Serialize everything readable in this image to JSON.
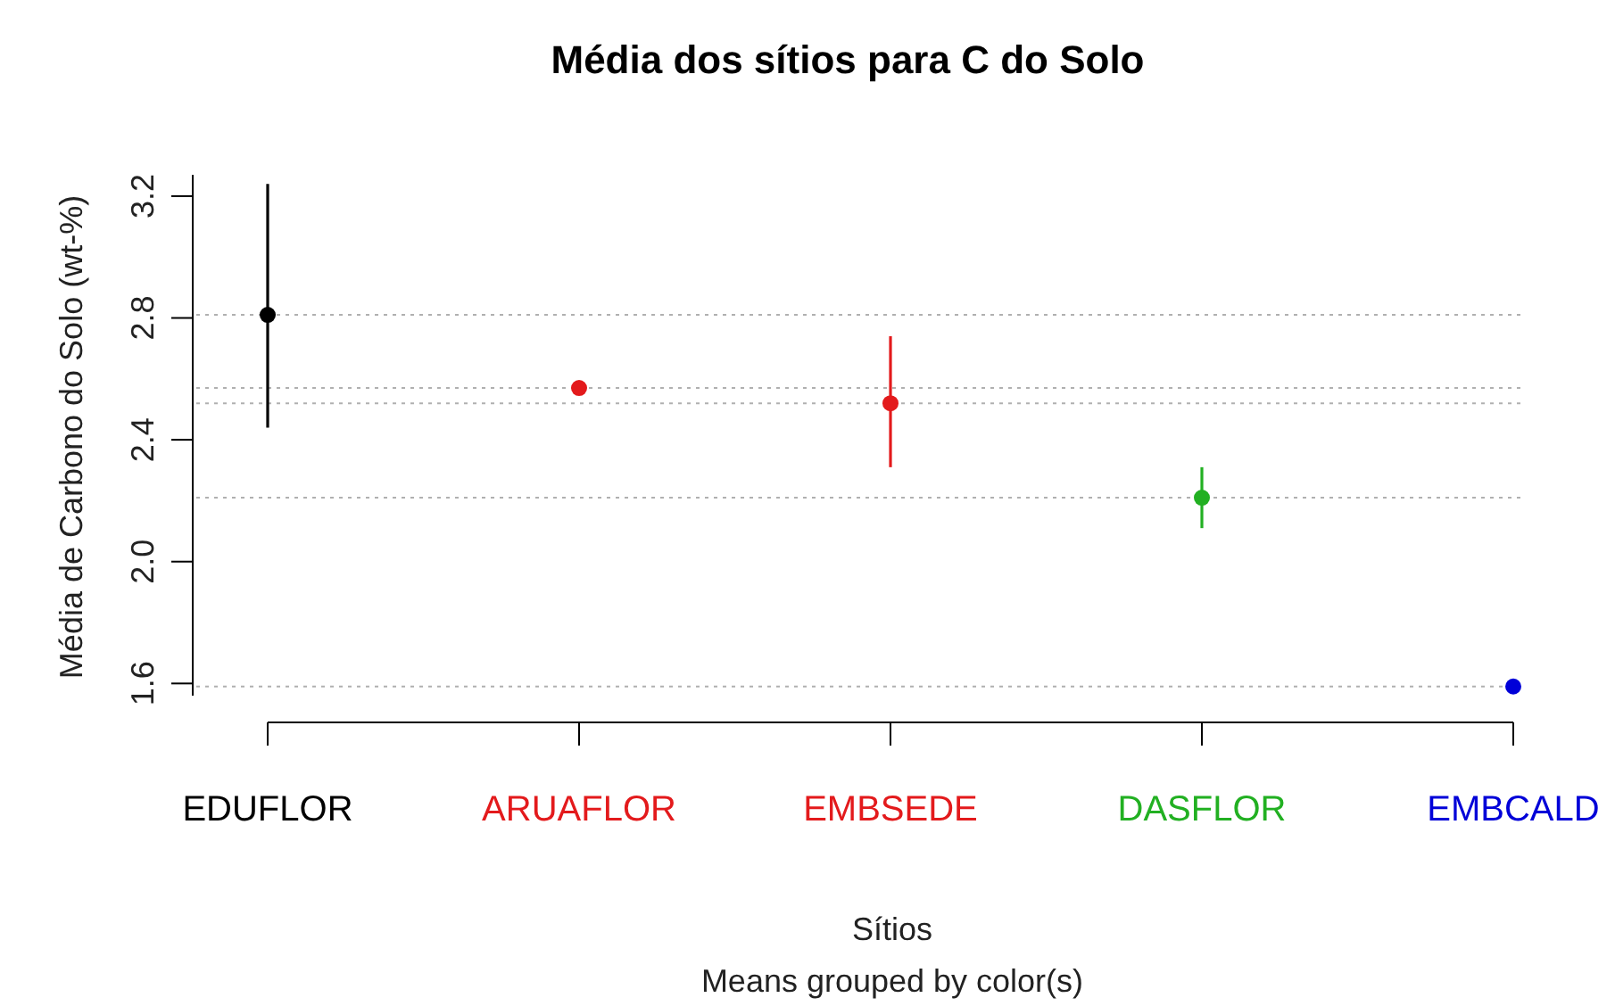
{
  "chart_data": {
    "type": "scatter",
    "title": "Média dos sítios para C do Solo",
    "xlabel": "Sítios",
    "ylabel": "Média de Carbono do Solo (wt-%)",
    "annotations": [
      "Means grouped by color(s)"
    ],
    "categories": [
      "EDUFLOR",
      "ARUAFLOR",
      "EMBSEDE",
      "DASFLOR",
      "EMBCALD"
    ],
    "series": [
      {
        "colors": [
          "#000000",
          "#e31a1c",
          "#e31a1c",
          "#22b022",
          "#0000d8"
        ],
        "values": [
          2.81,
          2.57,
          2.52,
          2.21,
          1.59
        ],
        "errors": [
          [
            2.44,
            3.24
          ],
          [
            2.56,
            2.59
          ],
          [
            2.31,
            2.74
          ],
          [
            2.11,
            2.31
          ],
          [
            1.58,
            1.6
          ]
        ]
      }
    ],
    "ref_lines": [
      {
        "axis": "y",
        "value": 2.81,
        "color": "#b0b0b0",
        "line_style": "dotted"
      },
      {
        "axis": "y",
        "value": 2.57,
        "color": "#b0b0b0",
        "line_style": "dotted"
      },
      {
        "axis": "y",
        "value": 2.52,
        "color": "#b0b0b0",
        "line_style": "dotted"
      },
      {
        "axis": "y",
        "value": 2.21,
        "color": "#b0b0b0",
        "line_style": "dotted"
      },
      {
        "axis": "y",
        "value": 1.59,
        "color": "#b0b0b0",
        "line_style": "dotted"
      }
    ],
    "ylim": [
      1.56,
      3.27
    ],
    "yticks": [
      1.6,
      {
        "value": 2,
        "label": "2.0"
      },
      2.4,
      2.8,
      3.2
    ],
    "marker": "circle",
    "grid": false
  }
}
